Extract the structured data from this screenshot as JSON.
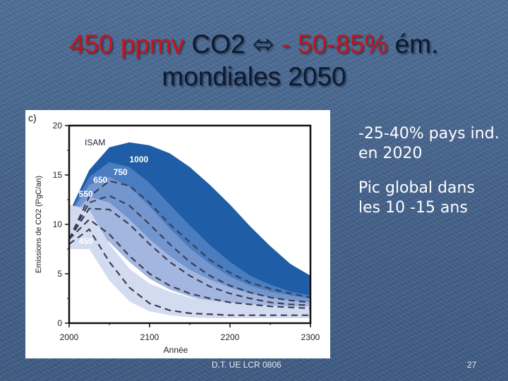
{
  "slide": {
    "title": {
      "line1_part1": "450 ppmv",
      "line1_part2": " CO2 ",
      "arrow": "⬄",
      "line1_part3": " - 50-85%",
      "line1_part4": " ém.",
      "line2": "mondiales  2050"
    },
    "bullets": [
      "-25-40% pays ind. en 2020",
      "Pic global dans les 10 -15 ans"
    ],
    "footer": "D.T. UE LCR 0806",
    "page_number": "27",
    "colors": {
      "title_red": "#c8141c",
      "title_dark": "#0d1a33",
      "background": "#4a6891"
    }
  },
  "chart_data": {
    "type": "area",
    "panel_label": "c)",
    "model_label": "ISAM",
    "xlabel": "Année",
    "ylabel": "Emissions de CO2 (PgC/an)",
    "xlim": [
      2000,
      2300
    ],
    "ylim": [
      0,
      20
    ],
    "x_ticks": [
      2000,
      2100,
      2200,
      2300
    ],
    "y_ticks": [
      0,
      5,
      10,
      15,
      20
    ],
    "x": [
      2000,
      2025,
      2050,
      2075,
      2100,
      2125,
      2150,
      2175,
      2200,
      2225,
      2250,
      2275,
      2300
    ],
    "series": [
      {
        "name": "1000",
        "color": "#1f5ea6",
        "upper": [
          11.2,
          15.5,
          17.8,
          18.3,
          18.0,
          17.2,
          15.8,
          14.0,
          12.0,
          9.8,
          7.8,
          6.0,
          4.8
        ],
        "lower": [
          7.5,
          11.5,
          12.4,
          11.8,
          10.0,
          8.0,
          6.2,
          4.8,
          3.8,
          3.1,
          2.6,
          2.2,
          2.0
        ],
        "median": [
          8.5,
          12.8,
          14.4,
          13.9,
          12.2,
          10.0,
          8.2,
          6.4,
          5.1,
          4.1,
          3.5,
          3.0,
          2.6
        ]
      },
      {
        "name": "750",
        "color": "#4a7cc0",
        "upper": [
          11.0,
          14.8,
          16.3,
          15.8,
          14.2,
          12.0,
          9.9,
          7.9,
          6.2,
          4.8,
          3.9,
          3.2,
          2.8
        ],
        "lower": [
          7.5,
          11.0,
          11.4,
          10.3,
          8.3,
          6.4,
          4.8,
          3.7,
          2.9,
          2.4,
          2.0,
          1.8,
          1.6
        ],
        "median": [
          8.5,
          12.2,
          12.9,
          11.9,
          10.0,
          8.0,
          6.2,
          4.8,
          3.8,
          3.1,
          2.6,
          2.3,
          2.1
        ]
      },
      {
        "name": "650",
        "color": "#7496cf",
        "upper": [
          10.8,
          14.0,
          14.8,
          13.8,
          11.8,
          9.6,
          7.6,
          6.0,
          4.7,
          3.8,
          3.2,
          2.8,
          2.5
        ],
        "lower": [
          7.5,
          10.5,
          10.3,
          9.0,
          7.0,
          5.3,
          4.0,
          3.1,
          2.5,
          2.1,
          1.8,
          1.6,
          1.5
        ],
        "median": [
          8.5,
          11.6,
          11.5,
          10.0,
          8.0,
          6.2,
          4.8,
          3.7,
          3.0,
          2.5,
          2.1,
          1.9,
          1.8
        ]
      },
      {
        "name": "550",
        "color": "#a3b6e0",
        "upper": [
          10.5,
          12.8,
          12.2,
          10.5,
          8.5,
          6.8,
          5.4,
          4.4,
          3.6,
          3.0,
          2.6,
          2.3,
          2.1
        ],
        "lower": [
          7.5,
          9.5,
          8.2,
          6.2,
          4.5,
          3.4,
          2.7,
          2.2,
          1.9,
          1.7,
          1.5,
          1.4,
          1.3
        ],
        "median": [
          8.5,
          10.5,
          9.0,
          6.8,
          5.0,
          3.8,
          3.0,
          2.5,
          2.1,
          1.9,
          1.7,
          1.6,
          1.5
        ]
      },
      {
        "name": "450",
        "color": "#d2dbef",
        "upper": [
          12.0,
          11.5,
          8.0,
          5.5,
          4.0,
          3.2,
          2.6,
          2.3,
          2.1,
          1.9,
          1.8,
          1.7,
          1.7
        ],
        "lower": [
          7.5,
          7.5,
          4.3,
          2.2,
          1.2,
          0.8,
          0.6,
          0.5,
          0.5,
          0.5,
          0.5,
          0.5,
          0.5
        ],
        "median": [
          8.0,
          9.5,
          6.2,
          3.6,
          2.0,
          1.3,
          1.0,
          0.9,
          0.8,
          0.8,
          0.8,
          0.8,
          0.8
        ]
      }
    ]
  }
}
